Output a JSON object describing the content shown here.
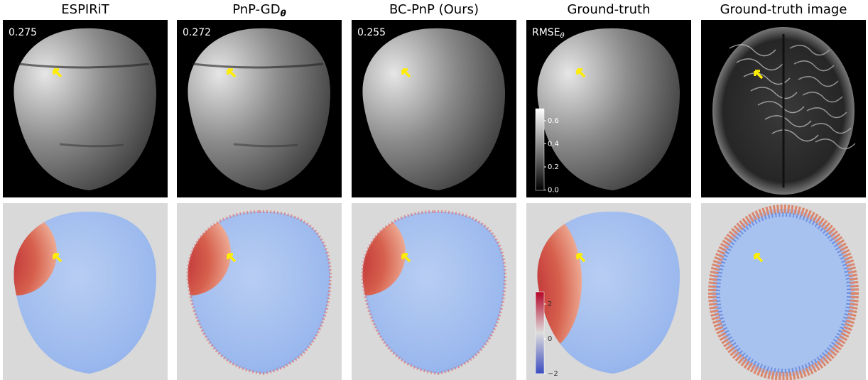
{
  "columns": [
    {
      "title": "ESPIRiT",
      "score": "0.275"
    },
    {
      "title": "PnP-GD",
      "title_subscript": "θ",
      "score": "0.272"
    },
    {
      "title": "BC-PnP (Ours)",
      "score": "0.255"
    },
    {
      "title": "Ground-truth",
      "score": "RMSE",
      "score_subscript": "θ"
    },
    {
      "title": "Ground-truth image"
    }
  ],
  "colorbars": {
    "magnitude_ticks": [
      "0.6",
      "0.4",
      "0.2",
      "0.0"
    ],
    "phase_ticks": [
      "2",
      "0",
      "−2"
    ]
  }
}
